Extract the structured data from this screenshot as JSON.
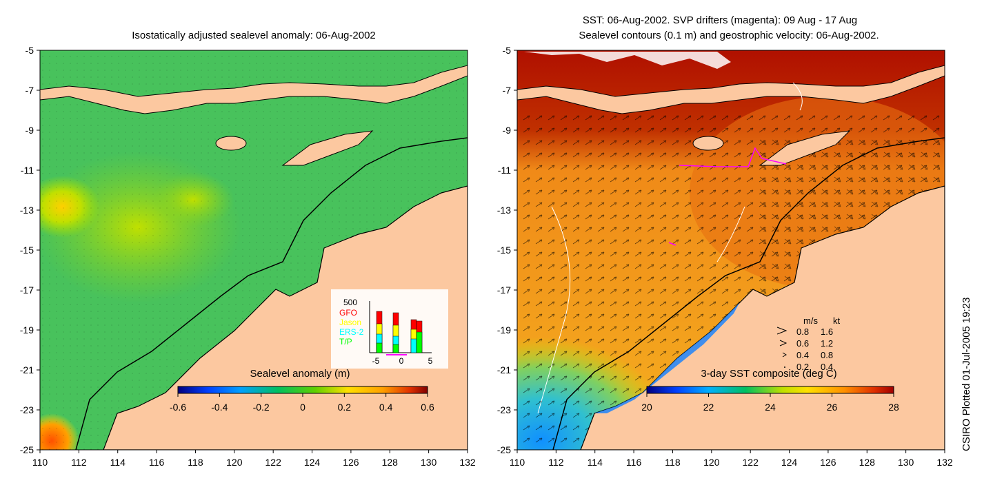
{
  "left_panel": {
    "title": "Isostatically adjusted sealevel anomaly: 06-Aug-2002",
    "colorbar": {
      "label": "Sealevel anomaly (m)",
      "ticks": [
        "-0.6",
        "-0.4",
        "-0.2",
        "0",
        "0.2",
        "0.4",
        "0.6"
      ],
      "colors": [
        "#00007f",
        "#0040ff",
        "#00a0ff",
        "#00d0a0",
        "#00c060",
        "#40d040",
        "#a0e000",
        "#ffe000",
        "#ffa000",
        "#ff5000",
        "#c00000",
        "#800000"
      ]
    },
    "inset": {
      "y_max_label": "500",
      "x_ticks": [
        "-5",
        "0",
        "5"
      ],
      "missions": [
        {
          "name": "GFO",
          "color": "#ff0000"
        },
        {
          "name": "Jason",
          "color": "#ffff00"
        },
        {
          "name": "ERS-2",
          "color": "#00ffff"
        },
        {
          "name": "T/P",
          "color": "#00ff00"
        }
      ]
    }
  },
  "right_panel": {
    "title_line1": "SST: 06-Aug-2002. SVP drifters (magenta): 09 Aug - 17 Aug",
    "title_line2": "Sealevel contours (0.1 m) and geostrophic velocity: 06-Aug-2002.",
    "colorbar": {
      "label": "3-day SST composite (deg C)",
      "ticks": [
        "20",
        "22",
        "24",
        "26",
        "28"
      ],
      "colors": [
        "#00007f",
        "#0040ff",
        "#00a0ff",
        "#00d0d0",
        "#00c060",
        "#60d000",
        "#c0e000",
        "#ffe000",
        "#ffb000",
        "#ff7000",
        "#e03000",
        "#a00000"
      ]
    },
    "velocity_legend": {
      "headers": [
        "m/s",
        "kt"
      ],
      "rows": [
        [
          "0.8",
          "1.6"
        ],
        [
          "0.6",
          "1.2"
        ],
        [
          "0.4",
          "0.8"
        ],
        [
          "0.2",
          "0.4"
        ]
      ]
    }
  },
  "axes": {
    "lon_ticks": [
      "110",
      "112",
      "114",
      "116",
      "118",
      "120",
      "122",
      "124",
      "126",
      "128",
      "130",
      "132"
    ],
    "lat_ticks": [
      "-5",
      "-7",
      "-9",
      "-11",
      "-13",
      "-15",
      "-17",
      "-19",
      "-21",
      "-23",
      "-25"
    ],
    "lon_range": [
      110,
      132
    ],
    "lat_range": [
      -25,
      -5
    ]
  },
  "footer": {
    "stamp": "CSIRO Plotted 01-Jul-2005 19:23"
  },
  "colors": {
    "land": "#fcc8a0",
    "sea_left": "#44c060",
    "sea_right": "#f08a18",
    "drifter": "#ff00ff"
  }
}
